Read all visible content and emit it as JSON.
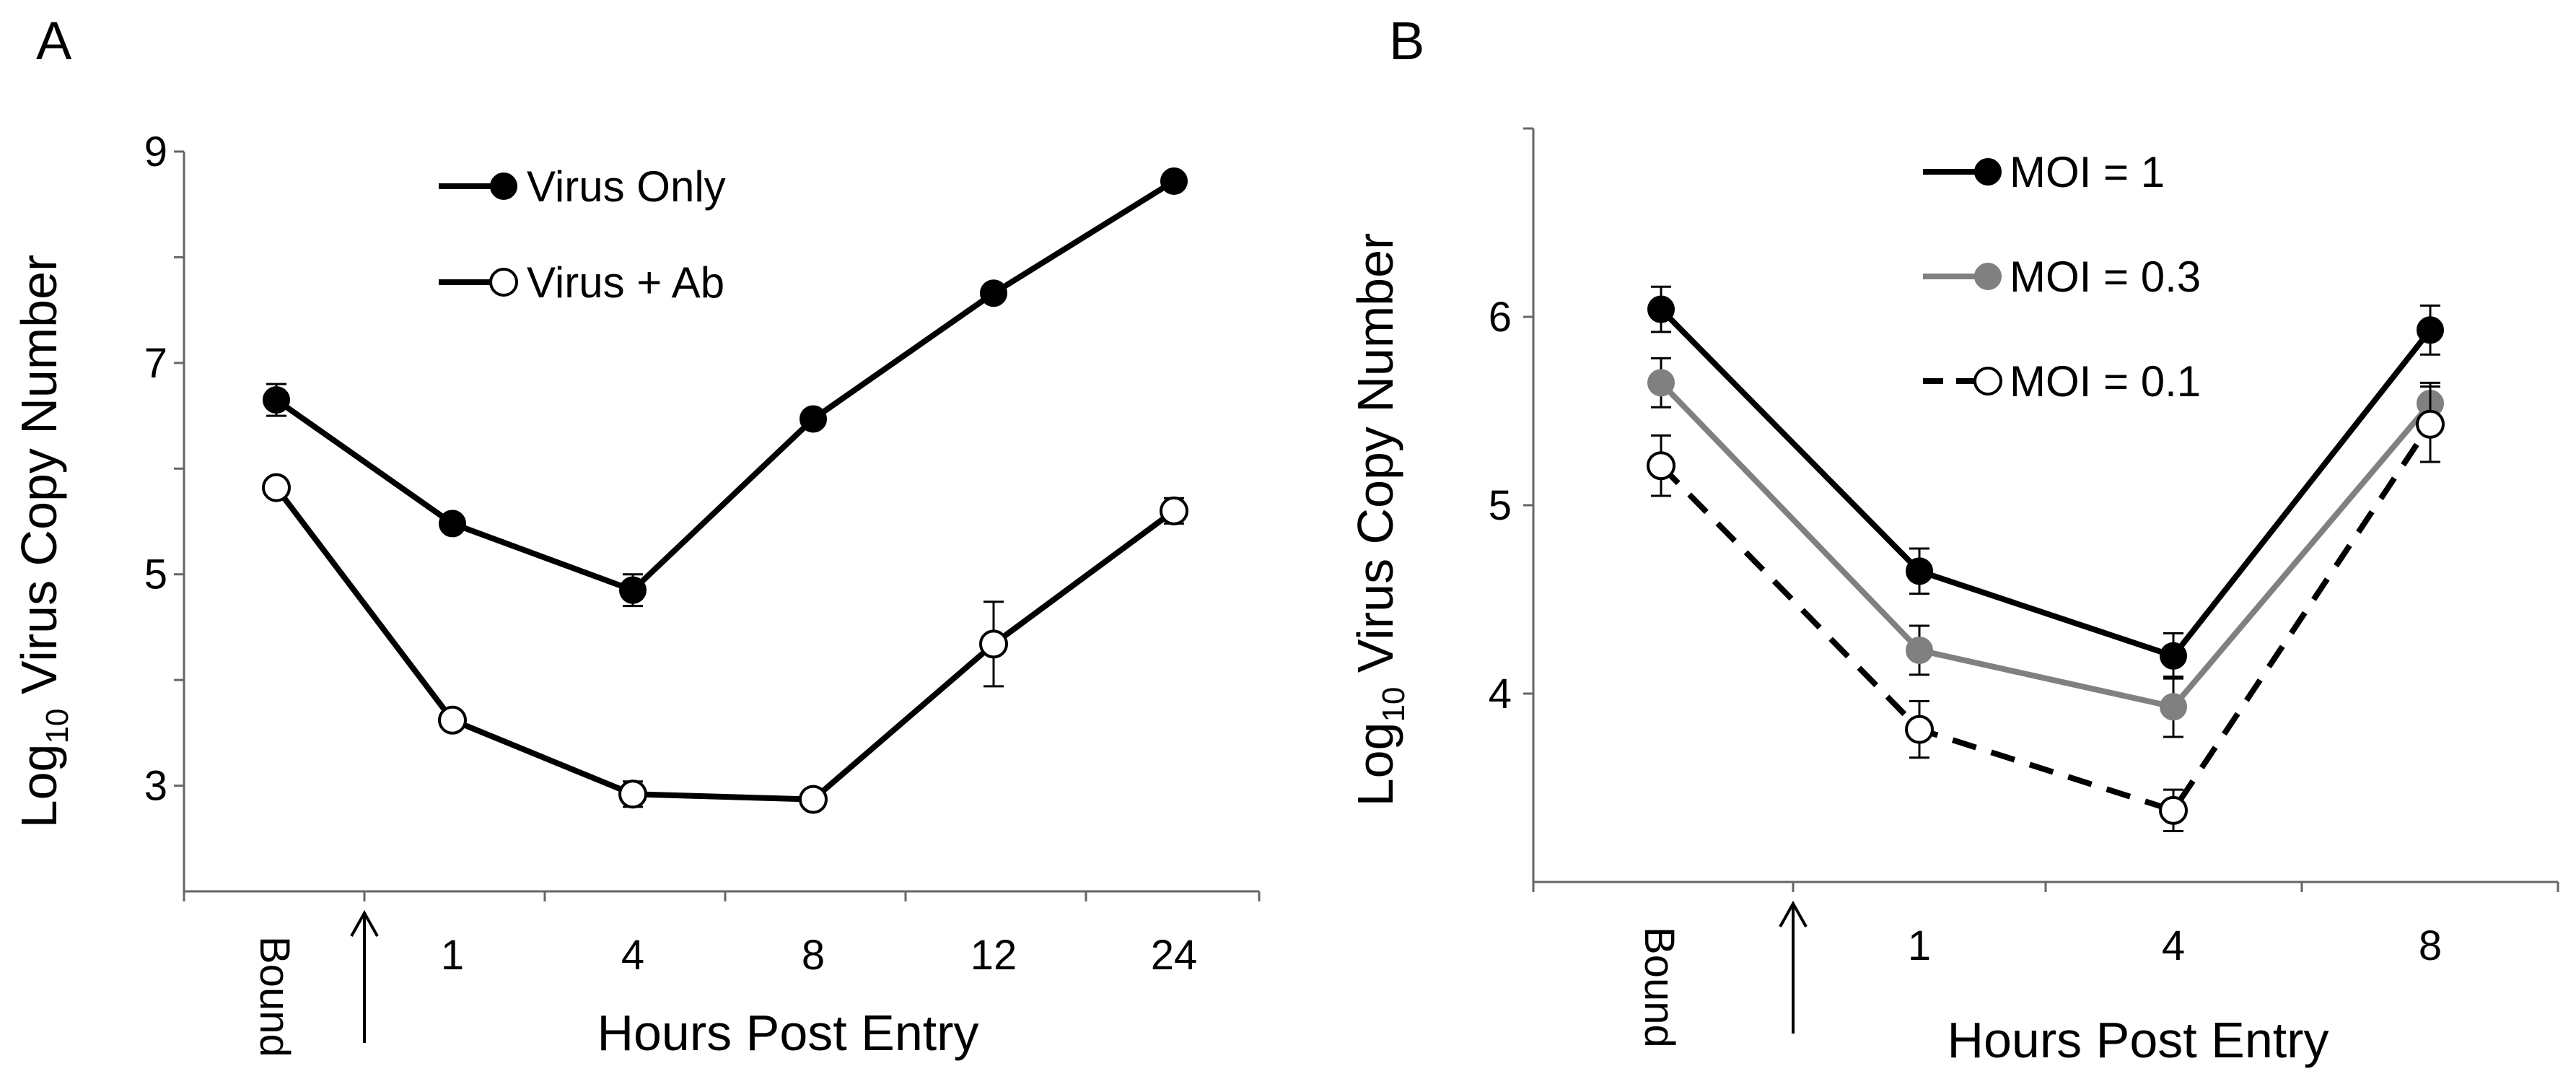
{
  "chart_data": [
    {
      "panel": "A",
      "type": "line",
      "title": "",
      "xlabel": "Hours Post Entry",
      "ylabel": "Log10 Virus Copy Number",
      "ylabel_base": "Log",
      "ylabel_sub": "10",
      "ylabel_rest": " Virus Copy Number",
      "ylim": [
        2,
        9
      ],
      "yticks": [
        3,
        5,
        7,
        9
      ],
      "categories": [
        "Bound",
        "1",
        "4",
        "8",
        "12",
        "24"
      ],
      "grid": false,
      "legend_position": "top-center",
      "series": [
        {
          "name": "Virus Only",
          "marker": "filled-circle",
          "color": "#000000",
          "dashed": false,
          "values": [
            6.65,
            5.48,
            4.85,
            6.47,
            7.66,
            8.72
          ],
          "errors": [
            0.15,
            0.07,
            0.15,
            0.06,
            0.06,
            0.06
          ]
        },
        {
          "name": "Virus + Ab",
          "marker": "open-circle",
          "color": "#000000",
          "dashed": false,
          "values": [
            5.82,
            3.62,
            2.92,
            2.87,
            4.34,
            5.6
          ],
          "errors": [
            0.06,
            0.07,
            0.12,
            0.06,
            0.4,
            0.12
          ]
        }
      ]
    },
    {
      "panel": "B",
      "type": "line",
      "title": "",
      "xlabel": "Hours Post Entry",
      "ylabel": "Log10 Virus Copy Number",
      "ylabel_base": "Log",
      "ylabel_sub": "10",
      "ylabel_rest": " Virus Copy Number",
      "ylim": [
        3,
        7
      ],
      "yticks": [
        4,
        5,
        6
      ],
      "categories": [
        "Bound",
        "1",
        "4",
        "8"
      ],
      "grid": false,
      "legend_position": "top-center",
      "series": [
        {
          "name": "MOI = 1",
          "marker": "filled-circle",
          "color": "#000000",
          "dashed": false,
          "values": [
            6.04,
            4.65,
            4.2,
            5.93
          ],
          "errors": [
            0.12,
            0.12,
            0.12,
            0.13
          ]
        },
        {
          "name": "MOI = 0.3",
          "marker": "filled-circle",
          "color": "#808080",
          "dashed": false,
          "values": [
            5.65,
            4.23,
            3.93,
            5.54
          ],
          "errors": [
            0.13,
            0.13,
            0.16,
            0.11
          ]
        },
        {
          "name": "MOI = 0.1",
          "marker": "open-circle",
          "color": "#000000",
          "dashed": true,
          "values": [
            5.21,
            3.81,
            3.38,
            5.43
          ],
          "errors": [
            0.16,
            0.15,
            0.11,
            0.2
          ]
        }
      ]
    }
  ]
}
